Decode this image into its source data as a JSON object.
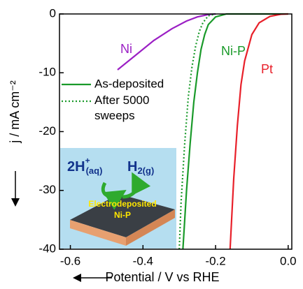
{
  "chart_data": {
    "type": "line",
    "xlabel": "Potential / V vs RHE",
    "ylabel": "j / mA cm⁻²",
    "xlim": [
      -0.63,
      0.01
    ],
    "ylim": [
      -40,
      0
    ],
    "xticks": [
      -0.6,
      -0.4,
      -0.2,
      {
        "value": 0,
        "label": "0.0"
      }
    ],
    "yticks": [
      0,
      -10,
      -20,
      -30,
      -40
    ],
    "series": [
      {
        "name": "Ni",
        "color": "#9b1fc4",
        "dash": "solid",
        "x": [
          -0.47,
          -0.42,
          -0.37,
          -0.32,
          -0.28,
          -0.25,
          -0.22,
          -0.2
        ],
        "values": [
          -9.5,
          -7,
          -4.5,
          -2.5,
          -1.2,
          -0.5,
          -0.1,
          0
        ]
      },
      {
        "name": "As-deposited",
        "color": "#1a9a2a",
        "dash": "solid",
        "x": [
          -0.29,
          -0.28,
          -0.27,
          -0.26,
          -0.25,
          -0.24,
          -0.23,
          -0.22,
          -0.2,
          -0.17,
          0
        ],
        "values": [
          -40,
          -30,
          -22,
          -15,
          -10,
          -6,
          -3.5,
          -1.8,
          -0.5,
          0,
          0
        ]
      },
      {
        "name": "After 5000 sweeps",
        "color": "#1a9a2a",
        "dash": "dotted",
        "x": [
          -0.3,
          -0.295,
          -0.285,
          -0.275,
          -0.265,
          -0.255,
          -0.245,
          -0.235,
          -0.22,
          -0.2
        ],
        "values": [
          -40,
          -32,
          -22,
          -14,
          -9,
          -5.5,
          -3,
          -1.5,
          -0.3,
          0
        ]
      },
      {
        "name": "Pt",
        "color": "#e8202a",
        "dash": "solid",
        "x": [
          -0.16,
          -0.15,
          -0.14,
          -0.13,
          -0.12,
          -0.1,
          -0.08,
          -0.05,
          -0.02,
          0
        ],
        "values": [
          -40,
          -28,
          -19,
          -12,
          -8,
          -3.5,
          -1.5,
          -0.4,
          -0.05,
          0
        ]
      }
    ],
    "annotations": {
      "ni_p": "Ni-P"
    },
    "inset": {
      "left": [
        "2H",
        "+",
        "(aq)"
      ],
      "right": [
        "H",
        "2(g)"
      ],
      "substrate": [
        "Electrodeposited",
        "Ni-P"
      ]
    }
  }
}
